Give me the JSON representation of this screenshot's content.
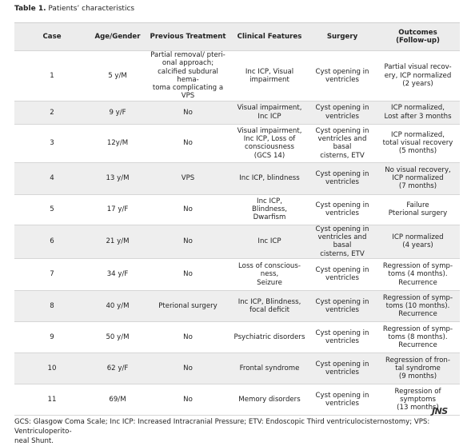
{
  "title": {
    "label": "Table 1.",
    "text": "Patients’ characteristics"
  },
  "table": {
    "header": [
      "Case",
      "Age/Gender",
      "Previous Treatment",
      "Clinical Features",
      "Surgery",
      "Outcomes\n(Follow-up)"
    ],
    "rows": [
      [
        "1",
        "5 y/M",
        "Partial removal/ pteri-\nonal approach;\ncalcified subdural hema-\ntoma complicating a VPS",
        "Inc ICP, Visual\nimpairment",
        "Cyst opening in\nventricles",
        "Partial visual recov-\nery, ICP normalized\n(2 years)"
      ],
      [
        "2",
        "9 y/F",
        "No",
        "Visual impairment,\nInc ICP",
        "Cyst opening in\nventricles",
        "ICP normalized,\nLost after 3 months"
      ],
      [
        "3",
        "12y/M",
        "No",
        "Visual impairment,\nInc ICP, Loss of\nconsciousness\n(GCS 14)",
        "Cyst opening in\nventricles and basal\ncisterns, ETV",
        "ICP normalized,\ntotal visual recovery\n(5 months)"
      ],
      [
        "4",
        "13 y/M",
        "VPS",
        "Inc ICP, blindness",
        "Cyst opening in\nventricles",
        "No visual recovery,\nICP normalized\n(7 months)"
      ],
      [
        "5",
        "17 y/F",
        "No",
        "Inc ICP,\nBlindness,\nDwarfism",
        "Cyst opening in\nventricles",
        "Failure\nPterional surgery"
      ],
      [
        "6",
        "21 y/M",
        "No",
        "Inc ICP",
        "Cyst opening in\nventricles and basal\ncisterns, ETV",
        "ICP normalized\n(4 years)"
      ],
      [
        "7",
        "34 y/F",
        "No",
        "Loss of conscious-\nness,\nSeizure",
        "Cyst opening in\nventricles",
        "Regression of symp-\ntoms (4 months).\nRecurrence"
      ],
      [
        "8",
        "40 y/M",
        "Pterional surgery",
        "Inc ICP, Blindness,\nfocal deficit",
        "Cyst opening in\nventricles",
        "Regression of symp-\ntoms (10 months).\nRecurrence"
      ],
      [
        "9",
        "50 y/M",
        "No",
        "Psychiatric disorders",
        "Cyst opening in\nventricles",
        "Regression of symp-\ntoms (8 months).\nRecurrence"
      ],
      [
        "10",
        "62 y/F",
        "No",
        "Frontal syndrome",
        "Cyst opening in\nventricles",
        "Regression of fron-\ntal syndrome\n(9 months)"
      ],
      [
        "11",
        "69/M",
        "No",
        "Memory disorders",
        "Cyst opening in\nventricles",
        "Regression of\nsymptoms\n(13 months)"
      ]
    ]
  },
  "footnote": "GCS: Glasgow Coma Scale; Inc ICP: Increased Intracranial Pressure; ETV: Endoscopic Third ventriculocisternostomy; VPS: Ventriculoperito-\nneal Shunt.",
  "logo": "JNS"
}
